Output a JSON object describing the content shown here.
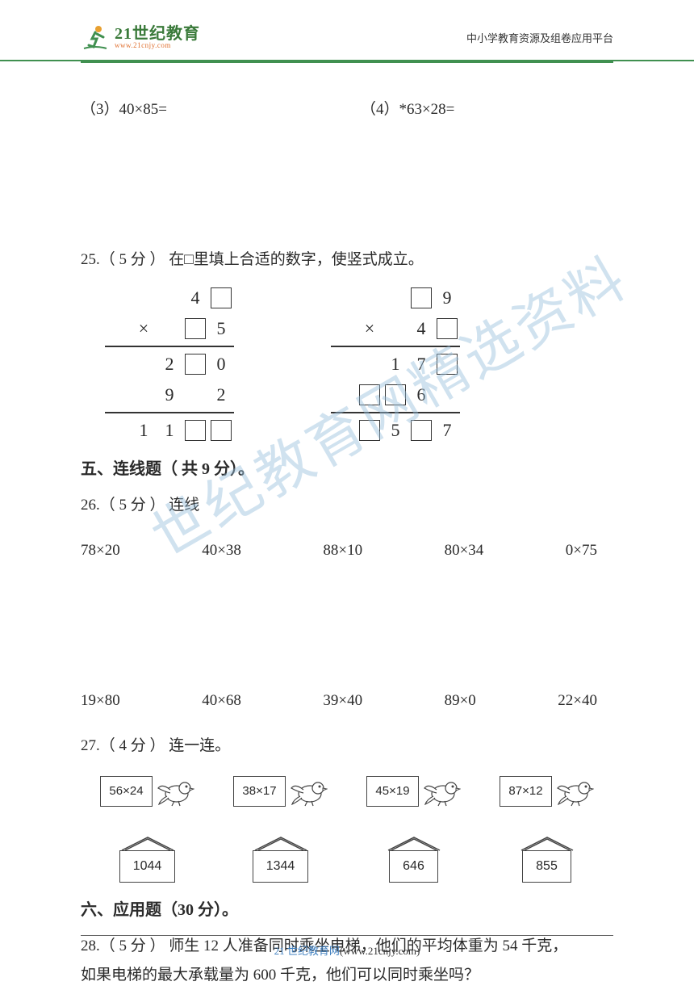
{
  "header": {
    "logo_main": "21世纪教育",
    "logo_sub": "www.21cnjy.com",
    "right_text": "中小学教育资源及组卷应用平台"
  },
  "q24": {
    "item3": "（3）40×85=",
    "item4": "（4）*63×28="
  },
  "q25": {
    "text": "25.（ 5 分 ） 在□里填上合适的数字，使竖式成立。",
    "left": {
      "r1": [
        "",
        "",
        "",
        "4",
        "□"
      ],
      "r2": [
        "",
        "×",
        "",
        "□",
        "5"
      ],
      "r3": [
        "",
        "",
        "2",
        "□",
        "0"
      ],
      "r4": [
        "",
        "",
        "9",
        "",
        "2"
      ],
      "r5": [
        "",
        "1",
        "1",
        "□",
        "□"
      ]
    },
    "right": {
      "r1": [
        "",
        "",
        "",
        "□",
        "9"
      ],
      "r2": [
        "",
        "×",
        "",
        "4",
        "□"
      ],
      "r3": [
        "",
        "",
        "1",
        "7",
        "□"
      ],
      "r4": [
        "",
        "□",
        "□",
        "6",
        ""
      ],
      "r5": [
        "",
        "□",
        "5",
        "□",
        "7"
      ]
    }
  },
  "section5_title": "五、连线题（ 共 9 分）。",
  "q26": {
    "text": "26.（ 5 分 ） 连线",
    "row1": [
      "78×20",
      "40×38",
      "88×10",
      "80×34",
      "0×75"
    ],
    "row2": [
      "19×80",
      "40×68",
      "39×40",
      "89×0",
      "22×40"
    ]
  },
  "q27": {
    "text": "27.（ 4 分 ） 连一连。",
    "birds": [
      "56×24",
      "38×17",
      "45×19",
      "87×12"
    ],
    "houses": [
      "1044",
      "1344",
      "646",
      "855"
    ]
  },
  "section6_title": "六、应用题（30 分）。",
  "q28": {
    "line1": "28.（ 5 分 ） 师生 12 人准备同时乘坐电梯，他们的平均体重为 54 千克，",
    "line2": "如果电梯的最大承载量为 600 千克，他们可以同时乘坐吗？"
  },
  "footer": {
    "text": "21 世纪教育网",
    "url": "(www.21cnjy.com)"
  },
  "watermark": "世纪教育网精选资料",
  "colors": {
    "header_border": "#409050",
    "logo_green": "#3a7a3a",
    "logo_orange": "#e07030",
    "text": "#2a2a2a",
    "footer_blue": "#4080c0",
    "watermark": "rgba(150,190,220,0.45)"
  }
}
